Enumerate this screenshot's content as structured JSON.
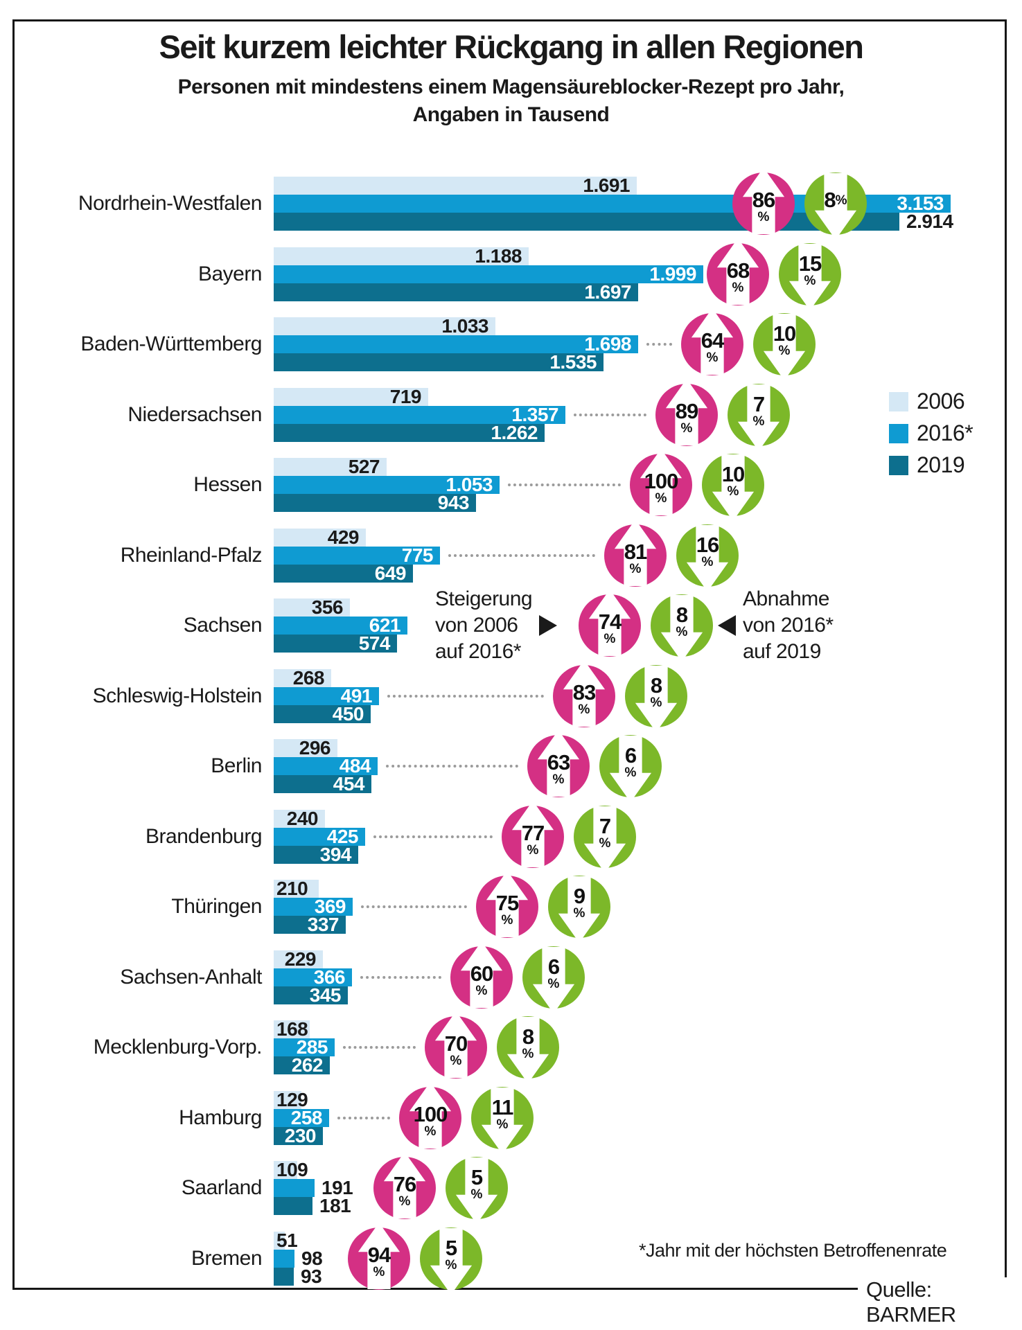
{
  "title": "Seit kurzem leichter Rückgang in allen Regionen",
  "subtitle": [
    "Personen mit mindestens einem Magensäureblocker-Rezept pro Jahr,",
    "Angaben in Tausend"
  ],
  "legend": {
    "items": [
      {
        "label": "2006",
        "color": "#d5e8f5"
      },
      {
        "label": "2016*",
        "color": "#0f9bd2"
      },
      {
        "label": "2019",
        "color": "#0d6f8e"
      }
    ]
  },
  "annotations": {
    "increase": {
      "lines": [
        "Steigerung",
        "von 2006",
        "auf 2016*"
      ]
    },
    "decrease": {
      "lines": [
        "Abnahme",
        "von 2016*",
        "auf 2019"
      ]
    }
  },
  "footnote": "*Jahr mit der höchsten Betroffenenrate",
  "source": "Quelle: BARMER",
  "colors": {
    "bar_2006": "#d5e8f5",
    "bar_2016": "#0f9bd2",
    "bar_2019": "#0d6f8e",
    "increase_badge": "#d43084",
    "decrease_badge": "#7cb829",
    "dotted_line": "#9b9b9b",
    "text": "#1a1a1a"
  },
  "chart_data": {
    "type": "bar",
    "orientation": "horizontal",
    "unit": "Tausend Personen",
    "series": [
      "2006",
      "2016*",
      "2019"
    ],
    "x_range": [
      0,
      3153
    ],
    "grid": false,
    "legend_position": "right",
    "rows": [
      {
        "name": "Nordrhein-Westfalen",
        "values": [
          1691,
          3153,
          2914
        ],
        "labels": [
          "1.691",
          "3.153",
          "2.914"
        ],
        "increase_pct": 86,
        "decrease_pct": 8
      },
      {
        "name": "Bayern",
        "values": [
          1188,
          1999,
          1697
        ],
        "labels": [
          "1.188",
          "1.999",
          "1.697"
        ],
        "increase_pct": 68,
        "decrease_pct": 15
      },
      {
        "name": "Baden-Württemberg",
        "values": [
          1033,
          1698,
          1535
        ],
        "labels": [
          "1.033",
          "1.698",
          "1.535"
        ],
        "increase_pct": 64,
        "decrease_pct": 10
      },
      {
        "name": "Niedersachsen",
        "values": [
          719,
          1357,
          1262
        ],
        "labels": [
          "719",
          "1.357",
          "1.262"
        ],
        "increase_pct": 89,
        "decrease_pct": 7
      },
      {
        "name": "Hessen",
        "values": [
          527,
          1053,
          943
        ],
        "labels": [
          "527",
          "1.053",
          "943"
        ],
        "increase_pct": 100,
        "decrease_pct": 10
      },
      {
        "name": "Rheinland-Pfalz",
        "values": [
          429,
          775,
          649
        ],
        "labels": [
          "429",
          "775",
          "649"
        ],
        "increase_pct": 81,
        "decrease_pct": 16
      },
      {
        "name": "Sachsen",
        "values": [
          356,
          621,
          574
        ],
        "labels": [
          "356",
          "621",
          "574"
        ],
        "increase_pct": 74,
        "decrease_pct": 8
      },
      {
        "name": "Schleswig-Holstein",
        "values": [
          268,
          491,
          450
        ],
        "labels": [
          "268",
          "491",
          "450"
        ],
        "increase_pct": 83,
        "decrease_pct": 8
      },
      {
        "name": "Berlin",
        "values": [
          296,
          484,
          454
        ],
        "labels": [
          "296",
          "484",
          "454"
        ],
        "increase_pct": 63,
        "decrease_pct": 6
      },
      {
        "name": "Brandenburg",
        "values": [
          240,
          425,
          394
        ],
        "labels": [
          "240",
          "425",
          "394"
        ],
        "increase_pct": 77,
        "decrease_pct": 7
      },
      {
        "name": "Thüringen",
        "values": [
          210,
          369,
          337
        ],
        "labels": [
          "210",
          "369",
          "337"
        ],
        "increase_pct": 75,
        "decrease_pct": 9
      },
      {
        "name": "Sachsen-Anhalt",
        "values": [
          229,
          366,
          345
        ],
        "labels": [
          "229",
          "366",
          "345"
        ],
        "increase_pct": 60,
        "decrease_pct": 6
      },
      {
        "name": "Mecklenburg-Vorp.",
        "values": [
          168,
          285,
          262
        ],
        "labels": [
          "168",
          "285",
          "262"
        ],
        "increase_pct": 70,
        "decrease_pct": 8
      },
      {
        "name": "Hamburg",
        "values": [
          129,
          258,
          230
        ],
        "labels": [
          "129",
          "258",
          "230"
        ],
        "increase_pct": 100,
        "decrease_pct": 11
      },
      {
        "name": "Saarland",
        "values": [
          109,
          191,
          181
        ],
        "labels": [
          "109",
          "191",
          "181"
        ],
        "increase_pct": 76,
        "decrease_pct": 5
      },
      {
        "name": "Bremen",
        "values": [
          51,
          98,
          93
        ],
        "labels": [
          "51",
          "98",
          "93"
        ],
        "increase_pct": 94,
        "decrease_pct": 5
      }
    ]
  }
}
